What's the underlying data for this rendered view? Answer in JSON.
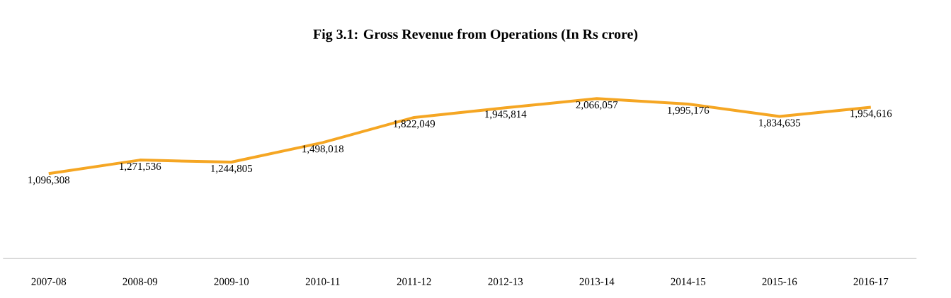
{
  "chart_data": {
    "type": "line",
    "title": "Fig 3.1: Gross Revenue from Operations (In Rs crore)",
    "categories": [
      "2007-08",
      "2008-09",
      "2009-10",
      "2010-11",
      "2011-12",
      "2012-13",
      "2013-14",
      "2014-15",
      "2015-16",
      "2016-17"
    ],
    "series": [
      {
        "color": "#f5a623",
        "values": [
          1096308,
          1271536,
          1244805,
          1498018,
          1822049,
          1945814,
          2066057,
          1995176,
          1834635,
          1954616
        ],
        "value_labels": [
          "1,096,308",
          "1,271,536",
          "1,244,805",
          "1,498,018",
          "1,822,049",
          "1,945,814",
          "2,066,057",
          "1,995,176",
          "1,834,635",
          "1,954,616"
        ]
      }
    ],
    "grid": false,
    "marker": "none"
  }
}
